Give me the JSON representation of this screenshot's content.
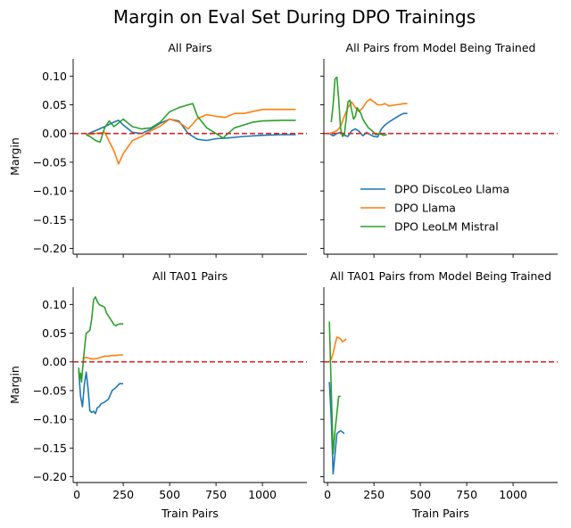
{
  "figure": {
    "title": "Margin on Eval Set During DPO Trainings",
    "legend": {
      "placement": "inside top-right panel, lower right",
      "entries": [
        {
          "name": "DPO DiscoLeo Llama",
          "color": "#1f77b4"
        },
        {
          "name": "DPO Llama",
          "color": "#ff7f0e"
        },
        {
          "name": "DPO LeoLM Mistral",
          "color": "#2ca02c"
        }
      ]
    },
    "reference_line": {
      "y": 0,
      "color": "#d62728",
      "style": "dashed"
    }
  },
  "chart_data": [
    {
      "type": "line",
      "title": "All Pairs",
      "xlabel": "",
      "ylabel": "Margin",
      "xlim": [
        -20,
        1240
      ],
      "ylim": [
        -0.21,
        0.13
      ],
      "xticks": [
        0,
        250,
        500,
        750,
        1000
      ],
      "xticklabels_visible": false,
      "yticks": [
        -0.2,
        -0.15,
        -0.1,
        -0.05,
        0.0,
        0.05,
        0.1
      ],
      "yticklabels": [
        "−0.20",
        "−0.15",
        "−0.10",
        "−0.05",
        "0.00",
        "0.05",
        "0.10"
      ],
      "series": [
        {
          "name": "DPO DiscoLeo Llama",
          "color": "#1f77b4",
          "x": [
            50,
            100,
            150,
            200,
            225,
            250,
            300,
            350,
            400,
            450,
            500,
            550,
            600,
            650,
            700,
            750,
            800,
            900,
            1000,
            1100,
            1180
          ],
          "y": [
            -0.002,
            0.005,
            0.012,
            0.02,
            0.023,
            0.015,
            0.002,
            0.0,
            0.008,
            0.018,
            0.025,
            0.022,
            0.0,
            -0.01,
            -0.012,
            -0.009,
            -0.008,
            -0.005,
            -0.003,
            -0.002,
            -0.002
          ]
        },
        {
          "name": "DPO Llama",
          "color": "#ff7f0e",
          "x": [
            50,
            100,
            150,
            200,
            225,
            250,
            300,
            350,
            400,
            450,
            500,
            550,
            600,
            650,
            700,
            750,
            800,
            850,
            900,
            1000,
            1100,
            1180
          ],
          "y": [
            -0.002,
            0.0,
            0.002,
            -0.03,
            -0.053,
            -0.035,
            -0.012,
            -0.005,
            0.005,
            0.013,
            0.025,
            0.02,
            0.008,
            0.026,
            0.033,
            0.03,
            0.028,
            0.035,
            0.035,
            0.042,
            0.042,
            0.042
          ]
        },
        {
          "name": "DPO LeoLM Mistral",
          "color": "#2ca02c",
          "x": [
            50,
            75,
            100,
            125,
            150,
            175,
            200,
            250,
            300,
            350,
            400,
            450,
            500,
            550,
            600,
            625,
            650,
            700,
            750,
            790,
            800,
            850,
            900,
            950,
            1000,
            1100,
            1180
          ],
          "y": [
            -0.002,
            -0.006,
            -0.012,
            -0.015,
            0.01,
            0.022,
            0.012,
            0.025,
            0.012,
            0.008,
            0.01,
            0.02,
            0.038,
            0.045,
            0.05,
            0.052,
            0.03,
            0.01,
            0.0,
            -0.008,
            -0.004,
            0.01,
            0.015,
            0.02,
            0.022,
            0.023,
            0.023
          ]
        }
      ]
    },
    {
      "type": "line",
      "title": "All Pairs from Model Being Trained",
      "xlabel": "",
      "ylabel": "",
      "xlim": [
        -20,
        1240
      ],
      "ylim": [
        -0.21,
        0.13
      ],
      "xticks": [
        0,
        250,
        500,
        750,
        1000
      ],
      "xticklabels_visible": false,
      "yticks": [
        -0.2,
        -0.15,
        -0.1,
        -0.05,
        0.0,
        0.05,
        0.1
      ],
      "yticklabels_visible": false,
      "series": [
        {
          "name": "DPO DiscoLeo Llama",
          "color": "#1f77b4",
          "x": [
            10,
            30,
            50,
            70,
            90,
            110,
            130,
            150,
            170,
            190,
            210,
            230,
            250,
            270,
            290,
            310,
            330,
            350,
            370,
            390,
            410,
            430
          ],
          "y": [
            0.0,
            -0.004,
            0.0,
            0.002,
            -0.003,
            -0.005,
            0.005,
            0.008,
            0.004,
            -0.004,
            0.002,
            -0.002,
            -0.005,
            -0.006,
            0.008,
            0.015,
            0.02,
            0.024,
            0.028,
            0.032,
            0.035,
            0.035
          ]
        },
        {
          "name": "DPO Llama",
          "color": "#ff7f0e",
          "x": [
            10,
            30,
            50,
            70,
            90,
            110,
            130,
            150,
            170,
            190,
            210,
            230,
            250,
            270,
            290,
            310,
            330,
            350,
            370,
            390,
            410,
            430
          ],
          "y": [
            0.0,
            0.002,
            0.005,
            0.012,
            0.03,
            0.045,
            0.055,
            0.045,
            0.038,
            0.045,
            0.055,
            0.06,
            0.055,
            0.05,
            0.05,
            0.052,
            0.048,
            0.049,
            0.05,
            0.051,
            0.052,
            0.052
          ]
        },
        {
          "name": "DPO LeoLM Mistral",
          "color": "#2ca02c",
          "x": [
            20,
            30,
            40,
            50,
            60,
            70,
            80,
            90,
            100,
            110,
            120,
            130,
            140,
            150,
            160,
            170,
            180,
            190,
            200,
            220,
            240,
            260,
            280,
            300,
            320
          ],
          "y": [
            0.02,
            0.05,
            0.095,
            0.098,
            0.06,
            0.01,
            -0.005,
            -0.002,
            0.025,
            0.055,
            0.058,
            0.04,
            0.025,
            0.03,
            0.045,
            0.04,
            0.035,
            0.025,
            0.02,
            0.01,
            0.005,
            -0.002,
            0.0,
            -0.003,
            -0.002
          ]
        }
      ]
    },
    {
      "type": "line",
      "title": "All TA01 Pairs",
      "xlabel": "Train Pairs",
      "ylabel": "Margin",
      "xlim": [
        -20,
        1240
      ],
      "ylim": [
        -0.21,
        0.13
      ],
      "xticks": [
        0,
        250,
        500,
        750,
        1000
      ],
      "xticklabels": [
        "0",
        "250",
        "500",
        "750",
        "1000"
      ],
      "yticks": [
        -0.2,
        -0.15,
        -0.1,
        -0.05,
        0.0,
        0.05,
        0.1
      ],
      "yticklabels": [
        "−0.20",
        "−0.15",
        "−0.10",
        "−0.05",
        "0.00",
        "0.05",
        "0.10"
      ],
      "series": [
        {
          "name": "DPO DiscoLeo Llama",
          "color": "#1f77b4",
          "x": [
            10,
            20,
            30,
            40,
            50,
            60,
            70,
            80,
            90,
            100,
            110,
            120,
            130,
            150,
            170,
            190,
            210,
            230,
            250
          ],
          "y": [
            -0.015,
            -0.06,
            -0.078,
            -0.04,
            -0.018,
            -0.045,
            -0.085,
            -0.088,
            -0.086,
            -0.09,
            -0.08,
            -0.078,
            -0.073,
            -0.07,
            -0.065,
            -0.05,
            -0.045,
            -0.038,
            -0.038
          ]
        },
        {
          "name": "DPO Llama",
          "color": "#ff7f0e",
          "x": [
            30,
            50,
            70,
            90,
            110,
            130,
            150,
            170,
            190,
            210,
            230,
            250
          ],
          "y": [
            0.005,
            0.008,
            0.006,
            0.005,
            0.006,
            0.008,
            0.01,
            0.01,
            0.011,
            0.011,
            0.012,
            0.012
          ]
        },
        {
          "name": "DPO LeoLM Mistral",
          "color": "#2ca02c",
          "x": [
            10,
            15,
            20,
            25,
            30,
            40,
            50,
            60,
            70,
            80,
            90,
            100,
            110,
            120,
            130,
            140,
            150,
            160,
            170,
            180,
            190,
            200,
            210,
            220,
            230,
            250
          ],
          "y": [
            -0.01,
            -0.03,
            -0.02,
            -0.035,
            -0.015,
            0.02,
            0.05,
            0.052,
            0.055,
            0.075,
            0.108,
            0.113,
            0.105,
            0.1,
            0.098,
            0.097,
            0.095,
            0.085,
            0.08,
            0.075,
            0.07,
            0.065,
            0.063,
            0.065,
            0.066,
            0.066
          ]
        }
      ]
    },
    {
      "type": "line",
      "title": "All TA01 Pairs from Model Being Trained",
      "xlabel": "Train Pairs",
      "ylabel": "",
      "xlim": [
        -20,
        1240
      ],
      "ylim": [
        -0.21,
        0.13
      ],
      "xticks": [
        0,
        250,
        500,
        750,
        1000
      ],
      "xticklabels": [
        "0",
        "250",
        "500",
        "750",
        "1000"
      ],
      "yticks": [
        -0.2,
        -0.15,
        -0.1,
        -0.05,
        0.0,
        0.05,
        0.1
      ],
      "yticklabels_visible": false,
      "series": [
        {
          "name": "DPO DiscoLeo Llama",
          "color": "#1f77b4",
          "x": [
            10,
            20,
            30,
            40,
            50,
            60,
            70,
            80,
            90
          ],
          "y": [
            -0.035,
            -0.1,
            -0.195,
            -0.16,
            -0.125,
            -0.122,
            -0.12,
            -0.122,
            -0.125
          ]
        },
        {
          "name": "DPO Llama",
          "color": "#ff7f0e",
          "x": [
            10,
            20,
            30,
            40,
            50,
            60,
            70,
            80,
            90,
            100
          ],
          "y": [
            0.0,
            0.005,
            0.015,
            0.03,
            0.043,
            0.042,
            0.04,
            0.035,
            0.037,
            0.04
          ]
        },
        {
          "name": "DPO LeoLM Mistral",
          "color": "#2ca02c",
          "x": [
            10,
            20,
            30,
            40,
            50,
            60,
            70
          ],
          "y": [
            0.07,
            -0.05,
            -0.16,
            -0.12,
            -0.09,
            -0.06,
            -0.06
          ]
        }
      ]
    }
  ]
}
